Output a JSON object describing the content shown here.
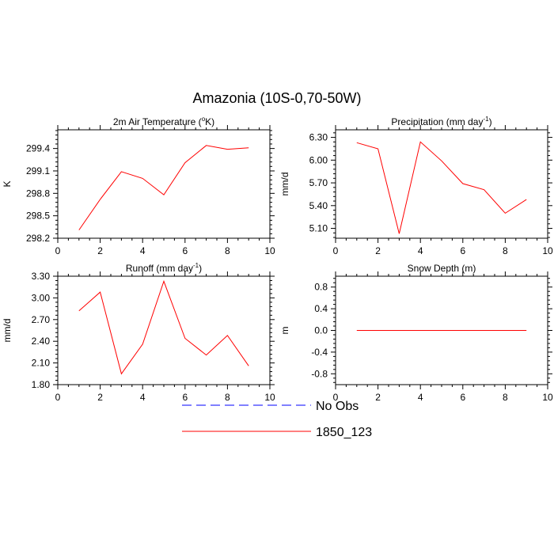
{
  "title": "Amazonia (10S-0,70-50W)",
  "colors": {
    "model": "#ff0000",
    "obs": "#0000ff",
    "axis": "#000000"
  },
  "legend": [
    {
      "name": "No Obs",
      "style": "dashed",
      "color": "#0000ff"
    },
    {
      "name": "1850_123",
      "style": "solid",
      "color": "#ff0000"
    }
  ],
  "chart_data": [
    {
      "type": "line",
      "title": "2m Air Temperature (°K)",
      "title_main": "2m Air Temperature (",
      "title_sup": "o",
      "title_end": "K)",
      "ylabel": "K",
      "xlim": [
        0,
        10
      ],
      "ylim": [
        298.2,
        299.65
      ],
      "xticks": [
        0,
        2,
        4,
        6,
        8,
        10
      ],
      "xtick_labels": [
        "0",
        "2",
        "4",
        "6",
        "8",
        "10"
      ],
      "yticks": [
        298.2,
        298.5,
        298.8,
        299.1,
        299.4
      ],
      "ytick_labels": [
        "298.2",
        "298.5",
        "298.8",
        "299.1",
        "299.4"
      ],
      "series": [
        {
          "name": "1850_123",
          "x": [
            1,
            2,
            3,
            4,
            5,
            6,
            7,
            8,
            9
          ],
          "values": [
            298.31,
            298.72,
            299.09,
            299.0,
            298.78,
            299.21,
            299.44,
            299.39,
            299.41
          ]
        }
      ]
    },
    {
      "type": "line",
      "title": "Precipitation (mm day-1)",
      "title_main": "Precipitation (mm day",
      "title_sup": "-1",
      "title_end": ")",
      "ylabel": "mm/d",
      "xlim": [
        0,
        10
      ],
      "ylim": [
        4.97,
        6.4
      ],
      "xticks": [
        0,
        2,
        4,
        6,
        8,
        10
      ],
      "xtick_labels": [
        "0",
        "2",
        "4",
        "6",
        "8",
        "10"
      ],
      "yticks": [
        5.1,
        5.4,
        5.7,
        6.0,
        6.3
      ],
      "ytick_labels": [
        "5.10",
        "5.40",
        "5.70",
        "6.00",
        "6.30"
      ],
      "series": [
        {
          "name": "1850_123",
          "x": [
            1,
            2,
            3,
            4,
            5,
            6,
            7,
            8,
            9
          ],
          "values": [
            6.23,
            6.15,
            5.03,
            6.24,
            5.99,
            5.69,
            5.61,
            5.3,
            5.48
          ]
        }
      ]
    },
    {
      "type": "line",
      "title": "Runoff (mm day-1)",
      "title_main": "Runoff (mm day",
      "title_sup": "-1",
      "title_end": ")",
      "ylabel": "mm/d",
      "xlim": [
        0,
        10
      ],
      "ylim": [
        1.8,
        3.3
      ],
      "xticks": [
        0,
        2,
        4,
        6,
        8,
        10
      ],
      "xtick_labels": [
        "0",
        "2",
        "4",
        "6",
        "8",
        "10"
      ],
      "yticks": [
        1.8,
        2.1,
        2.4,
        2.7,
        3.0,
        3.3
      ],
      "ytick_labels": [
        "1.80",
        "2.10",
        "2.40",
        "2.70",
        "3.00",
        "3.30"
      ],
      "series": [
        {
          "name": "1850_123",
          "x": [
            1,
            2,
            3,
            4,
            5,
            6,
            7,
            8,
            9
          ],
          "values": [
            2.82,
            3.08,
            1.95,
            2.36,
            3.23,
            2.44,
            2.21,
            2.48,
            2.06
          ]
        }
      ]
    },
    {
      "type": "line",
      "title": "Snow Depth (m)",
      "title_main": "Snow Depth (m)",
      "title_sup": "",
      "title_end": "",
      "ylabel": "m",
      "xlim": [
        0,
        10
      ],
      "ylim": [
        -1.0,
        1.0
      ],
      "xticks": [
        0,
        2,
        4,
        6,
        8,
        10
      ],
      "xtick_labels": [
        "0",
        "2",
        "4",
        "6",
        "8",
        "10"
      ],
      "yticks": [
        -0.8,
        -0.4,
        0.0,
        0.4,
        0.8
      ],
      "ytick_labels": [
        "-0.8",
        "-0.4",
        "0.0",
        "0.4",
        "0.8"
      ],
      "series": [
        {
          "name": "1850_123",
          "x": [
            1,
            2,
            3,
            4,
            5,
            6,
            7,
            8,
            9
          ],
          "values": [
            0,
            0,
            0,
            0,
            0,
            0,
            0,
            0,
            0
          ]
        }
      ]
    }
  ]
}
